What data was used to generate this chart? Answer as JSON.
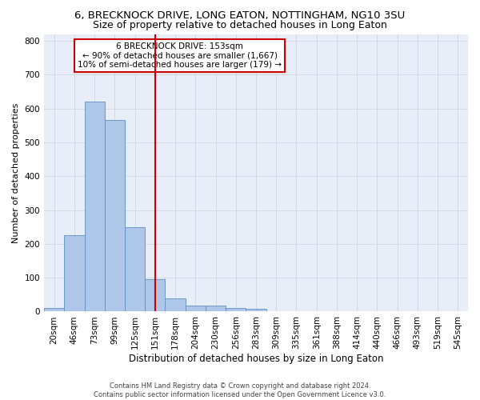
{
  "title": "6, BRECKNOCK DRIVE, LONG EATON, NOTTINGHAM, NG10 3SU",
  "subtitle": "Size of property relative to detached houses in Long Eaton",
  "xlabel": "Distribution of detached houses by size in Long Eaton",
  "ylabel": "Number of detached properties",
  "footer1": "Contains HM Land Registry data © Crown copyright and database right 2024.",
  "footer2": "Contains public sector information licensed under the Open Government Licence v3.0.",
  "bin_labels": [
    "20sqm",
    "46sqm",
    "73sqm",
    "99sqm",
    "125sqm",
    "151sqm",
    "178sqm",
    "204sqm",
    "230sqm",
    "256sqm",
    "283sqm",
    "309sqm",
    "335sqm",
    "361sqm",
    "388sqm",
    "414sqm",
    "440sqm",
    "466sqm",
    "493sqm",
    "519sqm",
    "545sqm"
  ],
  "bar_values": [
    10,
    225,
    620,
    565,
    250,
    95,
    40,
    18,
    18,
    10,
    7,
    0,
    0,
    0,
    0,
    0,
    0,
    0,
    0,
    0,
    0
  ],
  "bar_color": "#aec6e8",
  "bar_edge_color": "#5a8fc2",
  "red_line_bin": 5,
  "annotation_text": "6 BRECKNOCK DRIVE: 153sqm\n← 90% of detached houses are smaller (1,667)\n10% of semi-detached houses are larger (179) →",
  "annotation_box_color": "#ffffff",
  "annotation_box_edge": "#cc0000",
  "red_line_color": "#cc0000",
  "ylim": [
    0,
    820
  ],
  "yticks": [
    0,
    100,
    200,
    300,
    400,
    500,
    600,
    700,
    800
  ],
  "grid_color": "#d0d8e8",
  "bg_color": "#e8eef8",
  "title_fontsize": 9.5,
  "subtitle_fontsize": 9,
  "xlabel_fontsize": 8.5,
  "ylabel_fontsize": 8,
  "tick_fontsize": 7.5,
  "annotation_fontsize": 7.5,
  "footer_fontsize": 6
}
